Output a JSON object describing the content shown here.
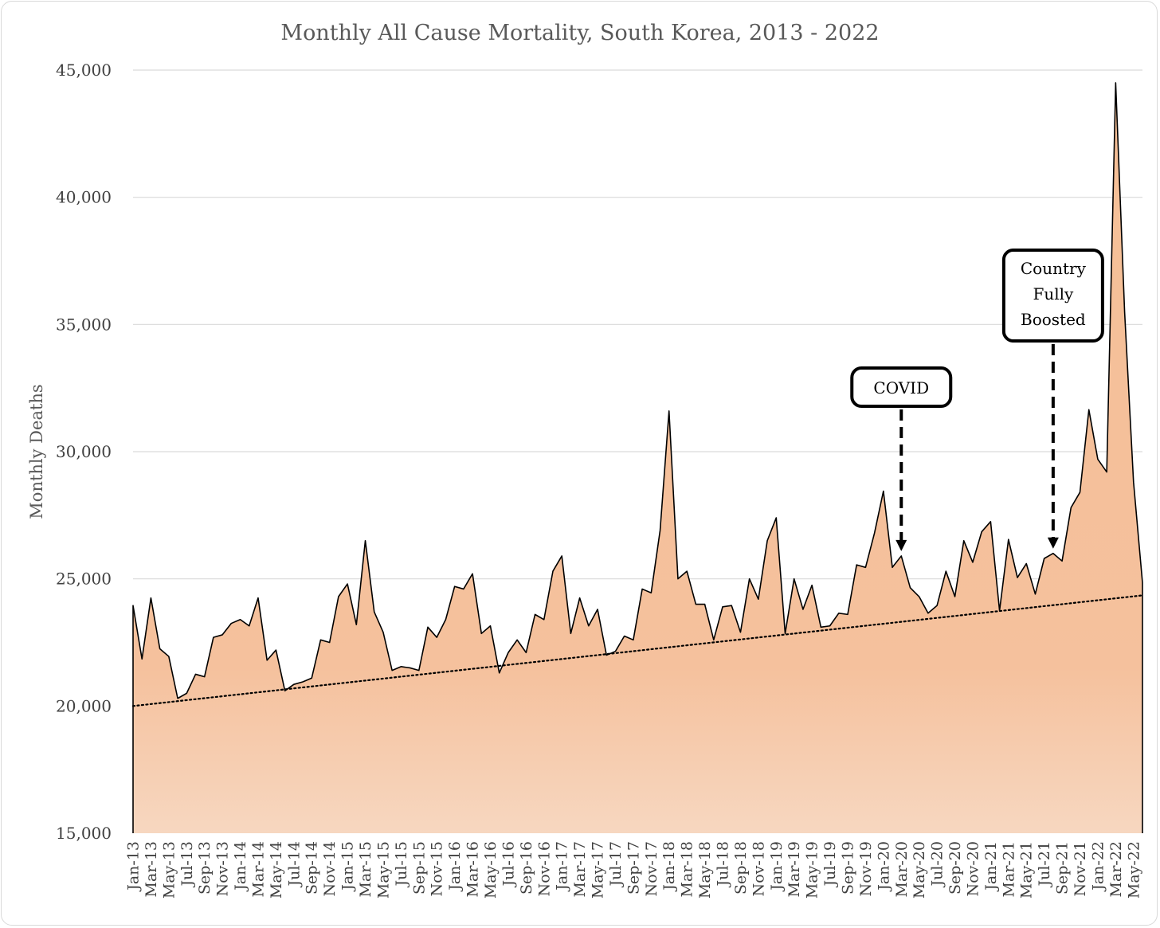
{
  "chart_data": {
    "type": "area",
    "title": "Monthly All Cause Mortality, South Korea, 2013 - 2022",
    "xlabel": "",
    "ylabel": "Monthly Deaths",
    "ylim": [
      15000,
      45000
    ],
    "yticks": [
      15000,
      20000,
      25000,
      30000,
      35000,
      40000,
      45000
    ],
    "ytick_labels": [
      "15,000",
      "20,000",
      "25,000",
      "30,000",
      "35,000",
      "40,000",
      "45,000"
    ],
    "grid": "horizontal",
    "legend": "none",
    "colors": {
      "area_top": "#f5bf96",
      "area_bottom": "#f7d7c0",
      "line": "#000000",
      "trend": "#000000",
      "grid": "#d9d9d9"
    },
    "xtick_labels": [
      "Jan-13",
      "Mar-13",
      "May-13",
      "Jul-13",
      "Sep-13",
      "Nov-13",
      "Jan-14",
      "Mar-14",
      "May-14",
      "Jul-14",
      "Sep-14",
      "Nov-14",
      "Jan-15",
      "Mar-15",
      "May-15",
      "Jul-15",
      "Sep-15",
      "Nov-15",
      "Jan-16",
      "Mar-16",
      "May-16",
      "Jul-16",
      "Sep-16",
      "Nov-16",
      "Jan-17",
      "Mar-17",
      "May-17",
      "Jul-17",
      "Sep-17",
      "Nov-17",
      "Jan-18",
      "Mar-18",
      "May-18",
      "Jul-18",
      "Sep-18",
      "Nov-18",
      "Jan-19",
      "Mar-19",
      "May-19",
      "Jul-19",
      "Sep-19",
      "Nov-19",
      "Jan-20",
      "Mar-20",
      "May-20",
      "Jul-20",
      "Sep-20",
      "Nov-20",
      "Jan-21",
      "Mar-21",
      "May-21",
      "Jul-21",
      "Sep-21",
      "Nov-21",
      "Jan-22",
      "Mar-22",
      "May-22"
    ],
    "series": [
      {
        "values": [
          23950,
          21850,
          24250,
          22250,
          21950,
          20300,
          20500,
          21250,
          21150,
          22700,
          22800,
          23250,
          23400,
          23150,
          24250,
          21800,
          22200,
          20600,
          20850,
          20950,
          21100,
          22600,
          22500,
          24300,
          24800,
          23200,
          26500,
          23700,
          22900,
          21400,
          21550,
          21500,
          21400,
          23100,
          22700,
          23400,
          24700,
          24600,
          25200,
          22850,
          23150,
          21300,
          22100,
          22600,
          22100,
          23600,
          23400,
          25300,
          25900,
          22850,
          24250,
          23150,
          23800,
          22000,
          22150,
          22750,
          22600,
          24600,
          24450,
          26900,
          31600,
          25000,
          25300,
          24000,
          24000,
          22600,
          23900,
          23950,
          22900,
          25000,
          24200,
          26500,
          27400,
          22850,
          25000,
          23800,
          24750,
          23100,
          23150,
          23650,
          23600,
          25550,
          25450,
          26800,
          28450,
          25450,
          25900,
          24650,
          24300,
          23650,
          23950,
          25300,
          24300,
          26500,
          25650,
          26850,
          27250,
          23750,
          26550,
          25050,
          25600,
          24400,
          25800,
          26000,
          25700,
          27800,
          28400,
          31650,
          29700,
          29200,
          44500,
          35500,
          28800,
          24850
        ]
      }
    ],
    "trendline": {
      "style": "dotted",
      "start": 20000,
      "end": 24350
    },
    "annotations": [
      {
        "text": [
          "COVID"
        ],
        "points_to": "Mar-20"
      },
      {
        "text": [
          "Country",
          "Fully",
          "Boosted"
        ],
        "points_to": "Aug-21"
      }
    ]
  }
}
